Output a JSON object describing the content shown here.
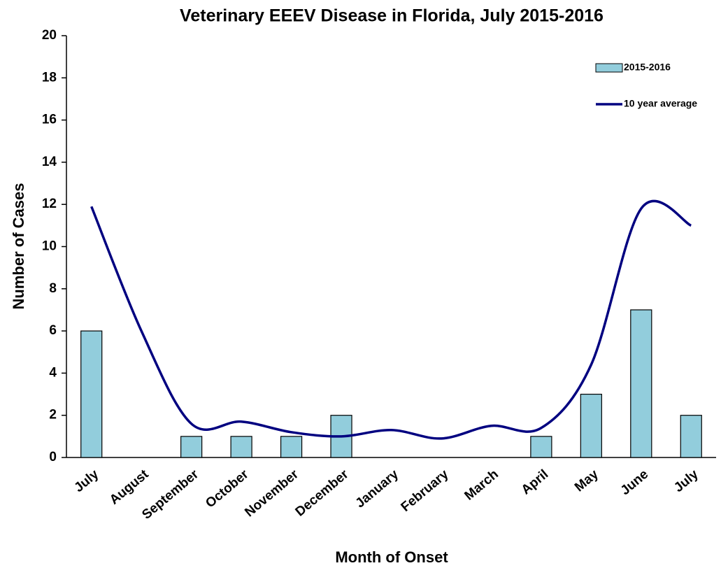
{
  "chart_data": {
    "type": "bar_line",
    "title": "Veterinary EEEV Disease in Florida, July 2015-2016",
    "x_label": "Month of Onset",
    "y_label": "Number of Cases",
    "categories": [
      "July",
      "August",
      "September",
      "October",
      "November",
      "December",
      "January",
      "February",
      "March",
      "April",
      "May",
      "June",
      "July"
    ],
    "series": [
      {
        "name": "2015-2016",
        "type": "bar",
        "color": "#92cddc",
        "values": [
          6,
          0,
          1,
          1,
          1,
          2,
          0,
          0,
          0,
          1,
          3,
          7,
          2
        ]
      },
      {
        "name": "10 year average",
        "type": "line",
        "color": "#000080",
        "values": [
          11.9,
          6,
          1.6,
          1.7,
          1.2,
          1.0,
          1.3,
          0.9,
          1.5,
          1.4,
          4.4,
          11.8,
          11.0
        ]
      }
    ],
    "ylim": [
      0,
      20
    ],
    "yticks": [
      0,
      2,
      4,
      6,
      8,
      10,
      12,
      14,
      16,
      18,
      20
    ],
    "legend": "top-right",
    "grid": false
  }
}
